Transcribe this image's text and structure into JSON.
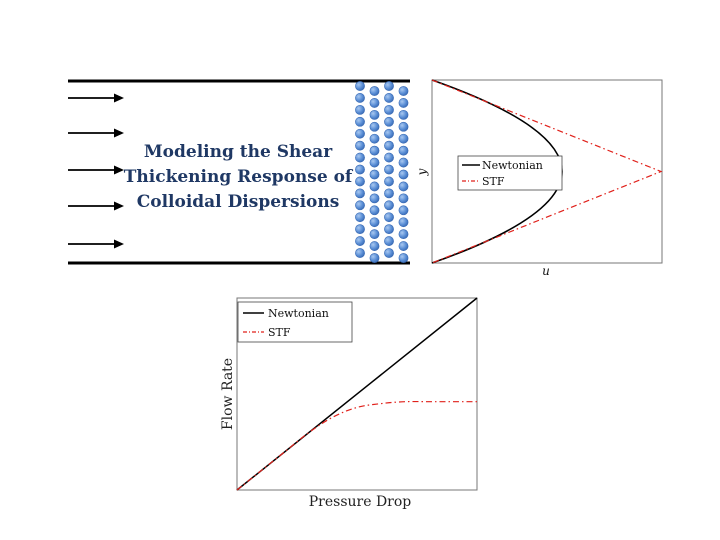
{
  "title": {
    "lines": [
      "Modeling the Shear",
      "Thickening Response of",
      "Colloidal Dispersions"
    ]
  },
  "colors": {
    "title": "#1f3864",
    "newtonian": "#000000",
    "stf": "#e0201a",
    "particle_fill": "#5b8fd6",
    "particle_stroke": "#3a6bb5"
  },
  "channel": {
    "flow_arrow_count": 5,
    "particle_columns": 4,
    "particles_per_column": 15
  },
  "velocity_profile": {
    "xlabel": "u",
    "ylabel": "y",
    "legend": [
      {
        "name": "Newtonian",
        "style": "solid"
      },
      {
        "name": "STF",
        "style": "dashdot"
      }
    ]
  },
  "chart_data": {
    "type": "line",
    "xlabel": "Pressure Drop",
    "ylabel": "Flow Rate",
    "xlim": [
      0,
      1
    ],
    "ylim": [
      0,
      1
    ],
    "legend_position": "top-left",
    "series": [
      {
        "name": "Newtonian",
        "style": "solid",
        "color": "#000000",
        "x": [
          0,
          1
        ],
        "y": [
          0,
          1
        ]
      },
      {
        "name": "STF",
        "style": "dashdot",
        "color": "#e0201a",
        "x": [
          0,
          0.1,
          0.2,
          0.3,
          0.4,
          0.5,
          0.6,
          0.7,
          0.8,
          0.9,
          1.0
        ],
        "y": [
          0,
          0.1,
          0.2,
          0.3,
          0.38,
          0.43,
          0.45,
          0.46,
          0.46,
          0.46,
          0.46
        ]
      }
    ]
  }
}
